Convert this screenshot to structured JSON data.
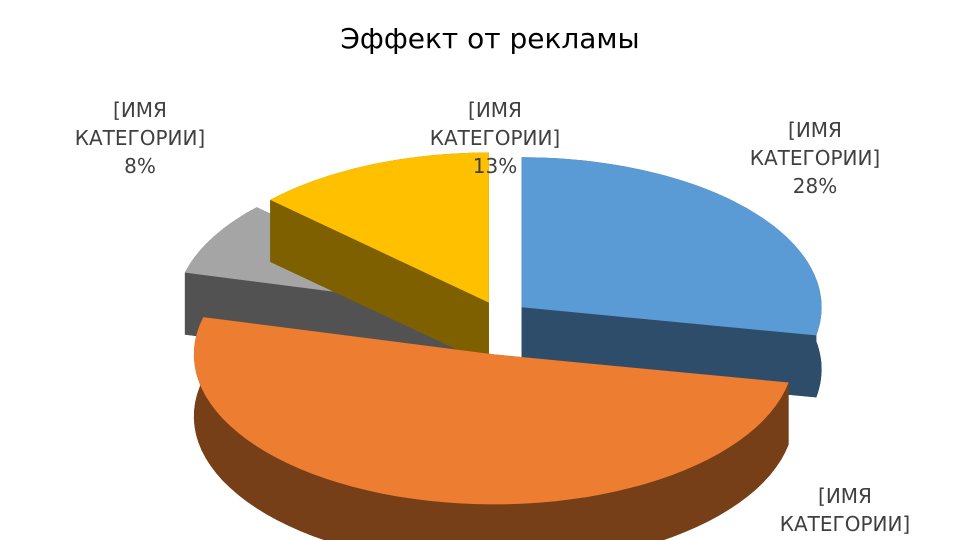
{
  "chart_data": {
    "type": "pie3d",
    "title": "Эффект от рекламы",
    "categories": [
      "[ИМЯ КАТЕГОРИИ]",
      "[ИМЯ КАТЕГОРИИ]",
      "[ИМЯ КАТЕГОРИИ]",
      "[ИМЯ КАТЕГОРИИ]"
    ],
    "values": [
      28,
      51,
      8,
      13
    ],
    "value_labels": [
      "28%",
      null,
      "8%",
      "13%"
    ],
    "colors": [
      "#5b9bd5",
      "#ed7d31",
      "#a5a5a5",
      "#ffc000"
    ],
    "side_colors": [
      "#2e4d6b",
      "#773f18",
      "#525252",
      "#7f6000"
    ]
  }
}
